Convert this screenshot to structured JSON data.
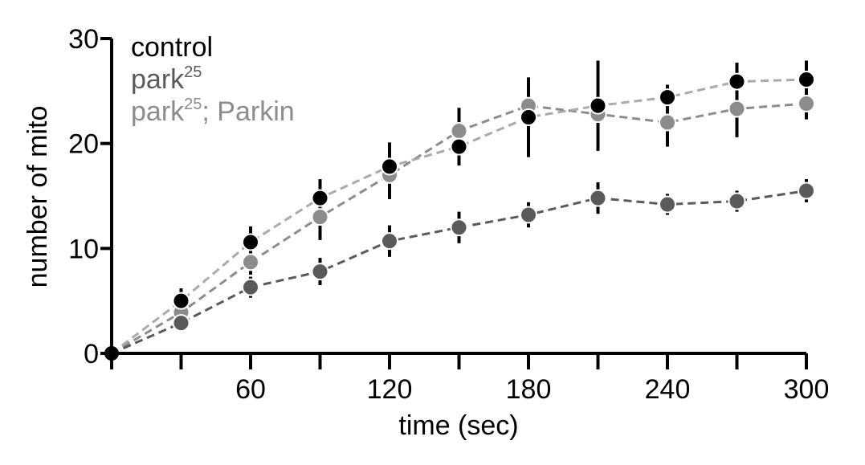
{
  "chart_data": {
    "type": "scatter",
    "title": "",
    "xlabel": "time (sec)",
    "ylabel": "number of mito",
    "xlim": [
      0,
      300
    ],
    "ylim": [
      0,
      30
    ],
    "xticks": [
      60,
      120,
      180,
      240,
      300
    ],
    "yticks": [
      0,
      10,
      20,
      30
    ],
    "x_tick_labels": [
      "60",
      "120",
      "180",
      "240",
      "300"
    ],
    "y_tick_labels": [
      "0",
      "10",
      "20",
      "30"
    ],
    "x_minor_ticks": [
      0,
      30,
      60,
      90,
      120,
      150,
      180,
      210,
      240,
      270,
      300
    ],
    "grid": false,
    "legend_position": "top-left",
    "x": [
      0,
      30,
      60,
      90,
      120,
      150,
      180,
      210,
      240,
      270,
      300
    ],
    "series": [
      {
        "name": "park; Parkin",
        "legend_base": "park",
        "legend_sup": "25",
        "legend_tail": "; Parkin",
        "color": "#8c8c8c",
        "line_color": "#8c8c8c",
        "values": [
          0,
          3.9,
          8.7,
          13.0,
          17.0,
          21.2,
          23.6,
          22.8,
          22.0,
          23.3,
          23.8
        ],
        "errors": [
          0.3,
          0.8,
          1.2,
          2.2,
          2.3,
          2.2,
          2.0,
          1.3,
          2.3,
          2.7,
          1.5
        ]
      },
      {
        "name": "park",
        "legend_base": "park",
        "legend_sup": "25",
        "legend_tail": "",
        "color": "#5a5a5a",
        "line_color": "#5a5a5a",
        "values": [
          0,
          2.9,
          6.3,
          7.8,
          10.7,
          12.0,
          13.2,
          14.8,
          14.2,
          14.5,
          15.5
        ],
        "errors": [
          0.3,
          0.8,
          1.0,
          1.3,
          1.5,
          1.5,
          1.2,
          1.5,
          1.0,
          1.0,
          1.1
        ]
      },
      {
        "name": "control",
        "legend_base": "control",
        "legend_sup": "",
        "legend_tail": "",
        "color": "#000000",
        "line_color": "#aaaaaa",
        "values": [
          0,
          5.0,
          10.6,
          14.8,
          17.8,
          19.7,
          22.5,
          23.6,
          24.4,
          25.9,
          26.1
        ],
        "errors": [
          0.3,
          1.2,
          1.5,
          1.8,
          2.3,
          1.8,
          3.8,
          4.3,
          1.2,
          1.8,
          1.8
        ]
      }
    ]
  }
}
